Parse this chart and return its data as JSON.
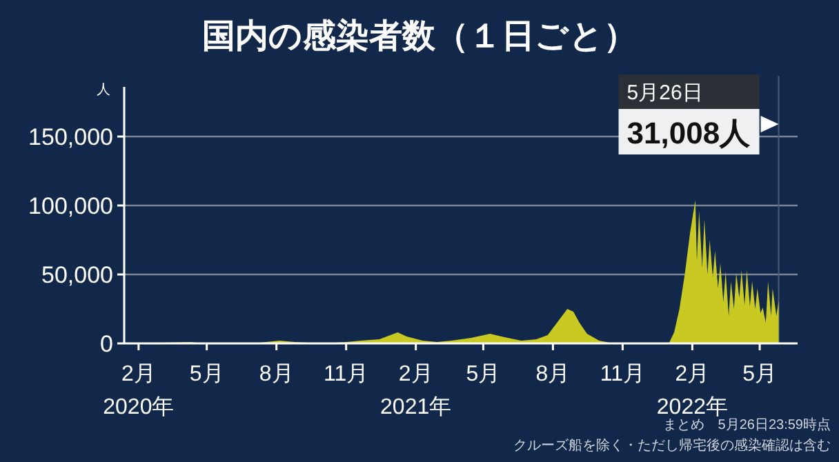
{
  "chart_data": {
    "type": "area",
    "title": "国内の感染者数（１日ごと）",
    "ylabel": "人",
    "xlim": [
      "2020-01-13",
      "2022-06-20"
    ],
    "ylim": [
      0,
      186000
    ],
    "yticks": [
      {
        "value": 0,
        "label": "0"
      },
      {
        "value": 50000,
        "label": "50,000"
      },
      {
        "value": 100000,
        "label": "100,000"
      },
      {
        "value": 150000,
        "label": "150,000"
      }
    ],
    "xticks": [
      {
        "value": "2020-02-01",
        "label": "2月\n2020年"
      },
      {
        "value": "2020-05-01",
        "label": "5月"
      },
      {
        "value": "2020-08-01",
        "label": "8月"
      },
      {
        "value": "2020-11-01",
        "label": "11月"
      },
      {
        "value": "2021-02-01",
        "label": "2月\n2021年"
      },
      {
        "value": "2021-05-01",
        "label": "5月"
      },
      {
        "value": "2021-08-01",
        "label": "8月"
      },
      {
        "value": "2021-11-01",
        "label": "11月"
      },
      {
        "value": "2022-02-01",
        "label": "2月\n2022年"
      },
      {
        "value": "2022-05-01",
        "label": "5月"
      }
    ],
    "grid": "y",
    "x": [
      "2020-01-16",
      "2020-04-10",
      "2020-04-25",
      "2020-05-20",
      "2020-07-01",
      "2020-08-05",
      "2020-08-25",
      "2020-10-01",
      "2020-11-01",
      "2020-11-20",
      "2020-12-15",
      "2021-01-08",
      "2021-01-20",
      "2021-02-10",
      "2021-03-01",
      "2021-03-20",
      "2021-04-15",
      "2021-05-10",
      "2021-05-25",
      "2021-06-20",
      "2021-07-10",
      "2021-07-25",
      "2021-08-05",
      "2021-08-20",
      "2021-08-28",
      "2021-09-05",
      "2021-09-15",
      "2021-10-01",
      "2021-10-20",
      "2021-11-15",
      "2021-12-20",
      "2022-01-01",
      "2022-01-08",
      "2022-01-15",
      "2022-01-22",
      "2022-01-29",
      "2022-02-05",
      "2022-02-07",
      "2022-02-10",
      "2022-02-14",
      "2022-02-17",
      "2022-02-21",
      "2022-02-24",
      "2022-02-28",
      "2022-03-03",
      "2022-03-07",
      "2022-03-10",
      "2022-03-14",
      "2022-03-17",
      "2022-03-21",
      "2022-03-24",
      "2022-03-28",
      "2022-03-31",
      "2022-04-04",
      "2022-04-07",
      "2022-04-11",
      "2022-04-14",
      "2022-04-18",
      "2022-04-21",
      "2022-04-25",
      "2022-04-28",
      "2022-05-02",
      "2022-05-05",
      "2022-05-09",
      "2022-05-12",
      "2022-05-16",
      "2022-05-18",
      "2022-05-23",
      "2022-05-26"
    ],
    "series": [
      {
        "color": "#c9c924",
        "values": [
          0,
          1000,
          0,
          0,
          0,
          2000,
          1000,
          0,
          1000,
          2000,
          3000,
          8000,
          5000,
          2000,
          1000,
          2000,
          4000,
          7000,
          5000,
          2000,
          3000,
          6000,
          14000,
          25000,
          23000,
          15000,
          7000,
          2000,
          0,
          0,
          0,
          0,
          8000,
          25000,
          50000,
          80000,
          104000,
          60000,
          96000,
          55000,
          90000,
          50000,
          75000,
          48000,
          67000,
          40000,
          58000,
          30000,
          52000,
          20000,
          45000,
          25000,
          51000,
          33000,
          53000,
          28000,
          53000,
          27000,
          45000,
          25000,
          40000,
          22000,
          26000,
          15000,
          45000,
          20000,
          40000,
          20000,
          31008
        ]
      }
    ],
    "ref_lines": [
      {
        "axis": "x",
        "value": "2022-05-26"
      }
    ],
    "annotations": [
      "5月26日",
      "31,008人",
      "まとめ　5月26日23:59時点",
      "クルーズ船を除く・ただし帰宅後の感染確認は含む"
    ]
  }
}
